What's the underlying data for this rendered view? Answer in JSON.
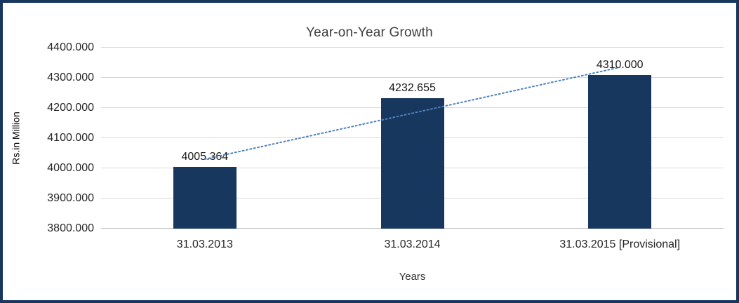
{
  "chart_data": {
    "type": "bar",
    "title": "Year-on-Year Growth",
    "xlabel": "Years",
    "ylabel": "Rs.in Million",
    "categories": [
      "31.03.2013",
      "31.03.2014",
      "31.03.2015 [Provisional]"
    ],
    "values": [
      4005.364,
      4232.655,
      4310.0
    ],
    "value_labels": [
      "4005.364",
      "4232.655",
      "4310.000"
    ],
    "ylim": [
      3800,
      4400
    ],
    "yticks": [
      "3800.000",
      "3900.000",
      "4000.000",
      "4100.000",
      "4200.000",
      "4300.000",
      "4400.000"
    ],
    "grid": true,
    "legend": false,
    "bar_color": "#17375E",
    "frame_border_color": "#17375E",
    "gridline_color": "#d9d9d9",
    "trendline": {
      "style": "dotted",
      "color": "#4f81bd",
      "start_value": 4030.4,
      "end_value": 4335.0
    }
  }
}
